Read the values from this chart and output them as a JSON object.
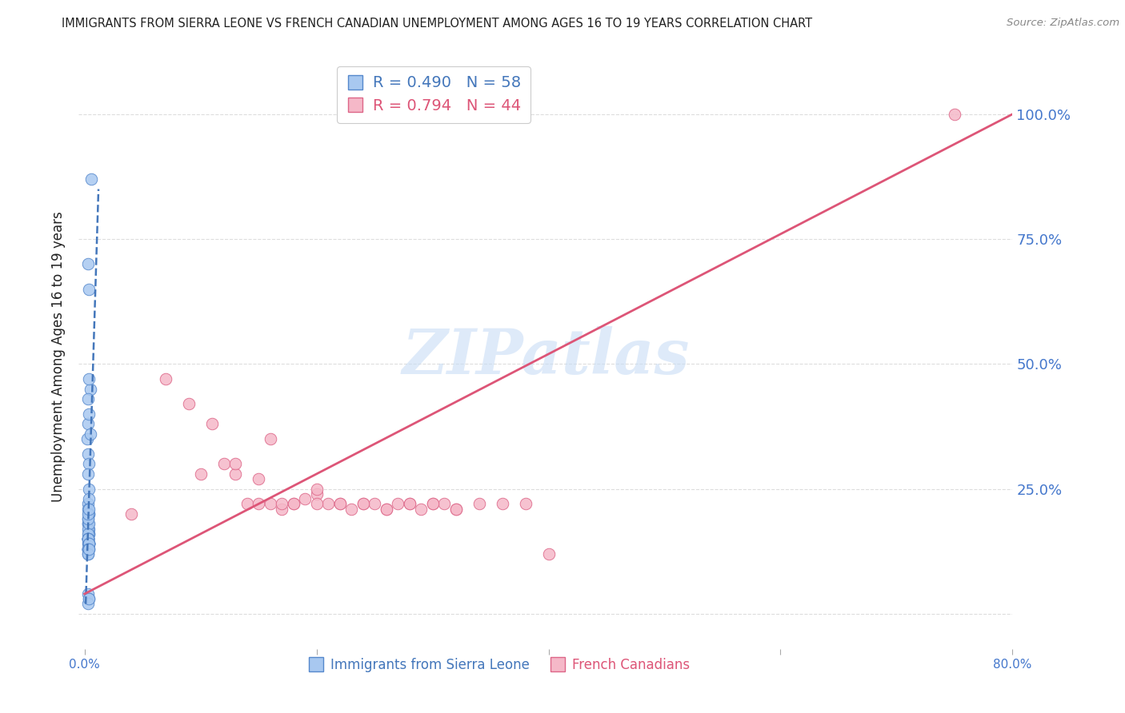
{
  "title": "IMMIGRANTS FROM SIERRA LEONE VS FRENCH CANADIAN UNEMPLOYMENT AMONG AGES 16 TO 19 YEARS CORRELATION CHART",
  "source": "Source: ZipAtlas.com",
  "ylabel": "Unemployment Among Ages 16 to 19 years",
  "watermark": "ZIPatlas",
  "blue_label": "Immigrants from Sierra Leone",
  "pink_label": "French Canadians",
  "blue_R": 0.49,
  "blue_N": 58,
  "pink_R": 0.794,
  "pink_N": 44,
  "blue_color": "#a8c8f0",
  "blue_edge_color": "#5588cc",
  "blue_line_color": "#4477bb",
  "pink_color": "#f5b8c8",
  "pink_edge_color": "#dd6688",
  "pink_line_color": "#dd5577",
  "blue_scatter_x": [
    0.003,
    0.004,
    0.006,
    0.003,
    0.004,
    0.005,
    0.003,
    0.004,
    0.002,
    0.003,
    0.004,
    0.005,
    0.003,
    0.004,
    0.003,
    0.004,
    0.003,
    0.004,
    0.003,
    0.004,
    0.003,
    0.003,
    0.004,
    0.004,
    0.003,
    0.003,
    0.004,
    0.003,
    0.004,
    0.003,
    0.004,
    0.003,
    0.003,
    0.004,
    0.003,
    0.004,
    0.003,
    0.003,
    0.004,
    0.003,
    0.003,
    0.004,
    0.003,
    0.003,
    0.004,
    0.003,
    0.003,
    0.004,
    0.003,
    0.003,
    0.004,
    0.003,
    0.003,
    0.004,
    0.003,
    0.004,
    0.003,
    0.004
  ],
  "blue_scatter_y": [
    0.18,
    0.2,
    0.87,
    0.7,
    0.65,
    0.45,
    0.43,
    0.47,
    0.35,
    0.38,
    0.4,
    0.36,
    0.32,
    0.3,
    0.28,
    0.25,
    0.22,
    0.23,
    0.21,
    0.2,
    0.19,
    0.18,
    0.17,
    0.16,
    0.15,
    0.14,
    0.13,
    0.15,
    0.16,
    0.17,
    0.18,
    0.19,
    0.2,
    0.21,
    0.15,
    0.14,
    0.16,
    0.15,
    0.14,
    0.13,
    0.15,
    0.14,
    0.13,
    0.15,
    0.14,
    0.13,
    0.15,
    0.14,
    0.13,
    0.12,
    0.14,
    0.13,
    0.12,
    0.13,
    0.04,
    0.03,
    0.02,
    0.03
  ],
  "pink_scatter_x": [
    0.04,
    0.07,
    0.09,
    0.11,
    0.12,
    0.13,
    0.14,
    0.15,
    0.16,
    0.17,
    0.18,
    0.19,
    0.2,
    0.21,
    0.22,
    0.23,
    0.24,
    0.25,
    0.26,
    0.27,
    0.28,
    0.29,
    0.3,
    0.31,
    0.32,
    0.1,
    0.13,
    0.15,
    0.17,
    0.2,
    0.22,
    0.24,
    0.26,
    0.28,
    0.3,
    0.32,
    0.34,
    0.36,
    0.38,
    0.4,
    0.16,
    0.18,
    0.2,
    0.75
  ],
  "pink_scatter_y": [
    0.2,
    0.47,
    0.42,
    0.38,
    0.3,
    0.28,
    0.22,
    0.22,
    0.22,
    0.21,
    0.22,
    0.23,
    0.24,
    0.22,
    0.22,
    0.21,
    0.22,
    0.22,
    0.21,
    0.22,
    0.22,
    0.21,
    0.22,
    0.22,
    0.21,
    0.28,
    0.3,
    0.27,
    0.22,
    0.25,
    0.22,
    0.22,
    0.21,
    0.22,
    0.22,
    0.21,
    0.22,
    0.22,
    0.22,
    0.12,
    0.35,
    0.22,
    0.22,
    1.0
  ],
  "blue_line_x": [
    0.001,
    0.012
  ],
  "blue_line_y": [
    0.02,
    0.85
  ],
  "pink_line_x": [
    0.0,
    0.8
  ],
  "pink_line_y": [
    0.04,
    1.0
  ],
  "xmin": -0.005,
  "xmax": 0.8,
  "ymin": -0.07,
  "ymax": 1.1,
  "ytick_positions": [
    0.0,
    0.25,
    0.5,
    0.75,
    1.0
  ],
  "ytick_labels_right": [
    "",
    "25.0%",
    "50.0%",
    "75.0%",
    "100.0%"
  ],
  "xtick_positions": [
    0.0,
    0.2,
    0.4,
    0.6,
    0.8
  ],
  "xtick_labels": [
    "0.0%",
    "",
    "",
    "",
    "80.0%"
  ],
  "grid_color": "#dddddd",
  "bg_color": "#ffffff",
  "title_color": "#222222",
  "tick_label_color": "#4477cc",
  "source_color": "#888888"
}
